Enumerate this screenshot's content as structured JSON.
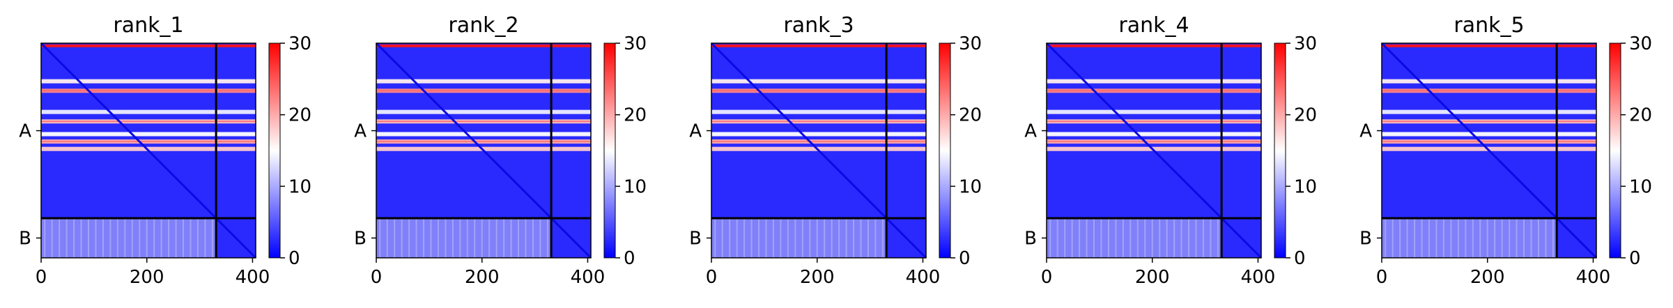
{
  "chart_data": [
    {
      "type": "heatmap",
      "title": "rank_1",
      "x_ticks": [
        0,
        200,
        400
      ],
      "y_tick_labels": [
        "A",
        "B"
      ],
      "chain_boundary": 331,
      "length": 406,
      "colorbar": {
        "range": [
          0,
          30
        ],
        "ticks": [
          0,
          10,
          20,
          30
        ],
        "colormap": "bwr"
      },
      "bright_rows": [
        5,
        72,
        90,
        130,
        148,
        172,
        186,
        200
      ],
      "bright_row_values": [
        29,
        16,
        22,
        14,
        19,
        15,
        20,
        18
      ]
    },
    {
      "type": "heatmap",
      "title": "rank_2",
      "x_ticks": [
        0,
        200,
        400
      ],
      "y_tick_labels": [
        "A",
        "B"
      ],
      "chain_boundary": 331,
      "length": 406,
      "colorbar": {
        "range": [
          0,
          30
        ],
        "ticks": [
          0,
          10,
          20,
          30
        ],
        "colormap": "bwr"
      },
      "bright_rows": [
        5,
        72,
        90,
        130,
        148,
        172,
        186,
        200
      ],
      "bright_row_values": [
        29,
        16,
        22,
        14,
        19,
        15,
        20,
        18
      ]
    },
    {
      "type": "heatmap",
      "title": "rank_3",
      "x_ticks": [
        0,
        200,
        400
      ],
      "y_tick_labels": [
        "A",
        "B"
      ],
      "chain_boundary": 331,
      "length": 406,
      "colorbar": {
        "range": [
          0,
          30
        ],
        "ticks": [
          0,
          10,
          20,
          30
        ],
        "colormap": "bwr"
      },
      "bright_rows": [
        5,
        72,
        90,
        130,
        148,
        172,
        186,
        200
      ],
      "bright_row_values": [
        29,
        16,
        22,
        14,
        19,
        15,
        20,
        18
      ]
    },
    {
      "type": "heatmap",
      "title": "rank_4",
      "x_ticks": [
        0,
        200,
        400
      ],
      "y_tick_labels": [
        "A",
        "B"
      ],
      "chain_boundary": 331,
      "length": 406,
      "colorbar": {
        "range": [
          0,
          30
        ],
        "ticks": [
          0,
          10,
          20,
          30
        ],
        "colormap": "bwr"
      },
      "bright_rows": [
        5,
        72,
        90,
        130,
        148,
        172,
        186,
        200
      ],
      "bright_row_values": [
        29,
        16,
        22,
        14,
        19,
        15,
        20,
        18
      ]
    },
    {
      "type": "heatmap",
      "title": "rank_5",
      "x_ticks": [
        0,
        200,
        400
      ],
      "y_tick_labels": [
        "A",
        "B"
      ],
      "chain_boundary": 331,
      "length": 406,
      "colorbar": {
        "range": [
          0,
          30
        ],
        "ticks": [
          0,
          10,
          20,
          30
        ],
        "colormap": "bwr"
      },
      "bright_rows": [
        5,
        72,
        90,
        130,
        148,
        172,
        186,
        200
      ],
      "bright_row_values": [
        29,
        16,
        22,
        14,
        19,
        15,
        20,
        18
      ]
    }
  ]
}
